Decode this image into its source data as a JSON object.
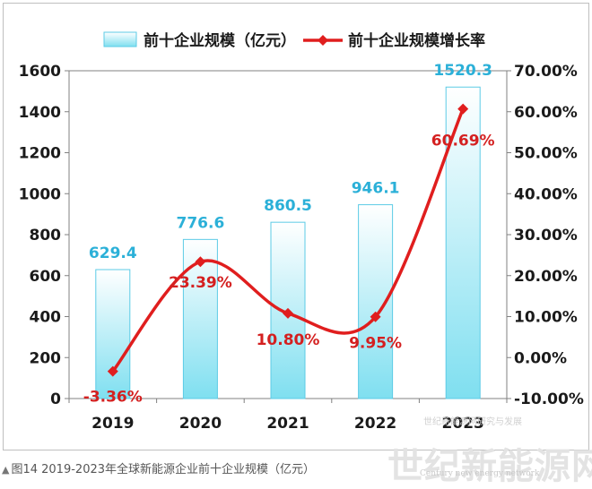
{
  "chart_data": {
    "type": "bar",
    "categories": [
      "2019",
      "2020",
      "2021",
      "2022",
      "2023"
    ],
    "series": [
      {
        "name": "前十企业规模（亿元）",
        "type": "bar",
        "axis": "left",
        "values": [
          629.4,
          776.6,
          860.5,
          946.1,
          1520.3
        ],
        "labels": [
          "629.4",
          "776.6",
          "860.5",
          "946.1",
          "1520.3"
        ],
        "color": "#7fdff0"
      },
      {
        "name": "前十企业规模增长率",
        "type": "line",
        "axis": "right",
        "values": [
          -3.36,
          23.39,
          10.8,
          9.95,
          60.69
        ],
        "labels": [
          "-3.36%",
          "23.39%",
          "10.80%",
          "9.95%",
          "60.69%"
        ],
        "color": "#e01e1e"
      }
    ],
    "y_left": {
      "lim": [
        0,
        1600
      ],
      "ticks": [
        "0",
        "200",
        "400",
        "600",
        "800",
        "1000",
        "1200",
        "1400",
        "1600"
      ]
    },
    "y_right": {
      "lim": [
        -10,
        70
      ],
      "ticks": [
        "-10.00%",
        "0.00%",
        "10.00%",
        "20.00%",
        "30.00%",
        "40.00%",
        "50.00%",
        "60.00%",
        "70.00%"
      ]
    },
    "grid": false,
    "legend": "top-center"
  },
  "watermark": {
    "logo_text": "世纪新能源网",
    "logo_sub": "Century new energy network",
    "stamp_text": "世纪新能源网研究与发展"
  },
  "caption": {
    "marker": "▲",
    "text": "图14 2019-2023年全球新能源企业前十企业规模（亿元）"
  }
}
